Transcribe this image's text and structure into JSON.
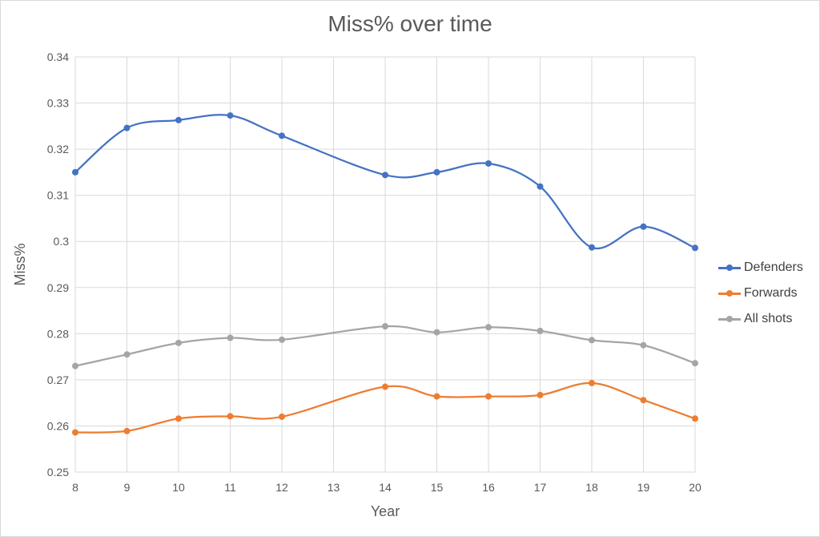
{
  "chart_data": {
    "type": "line",
    "title": "Miss% over time",
    "xlabel": "Year",
    "ylabel": "Miss%",
    "x": [
      8,
      9,
      10,
      11,
      12,
      13,
      14,
      15,
      16,
      17,
      18,
      19,
      20
    ],
    "xticks": [
      "8",
      "9",
      "10",
      "11",
      "12",
      "13",
      "14",
      "15",
      "16",
      "17",
      "18",
      "19",
      "20"
    ],
    "ylim": [
      0.25,
      0.34
    ],
    "yticks": [
      "0.25",
      "0.26",
      "0.27",
      "0.28",
      "0.29",
      "0.3",
      "0.31",
      "0.32",
      "0.33",
      "0.34"
    ],
    "grid": true,
    "legend_position": "right",
    "series": [
      {
        "name": "Defenders",
        "color": "#4472c4",
        "x": [
          8,
          9,
          10,
          11,
          12,
          14,
          15,
          16,
          17,
          18,
          19,
          20
        ],
        "values": [
          0.315,
          0.3246,
          0.3263,
          0.3273,
          0.3229,
          0.3144,
          0.315,
          0.3169,
          0.3119,
          0.2987,
          0.3032,
          0.2986
        ]
      },
      {
        "name": "Forwards",
        "color": "#ed7d31",
        "x": [
          8,
          9,
          10,
          11,
          12,
          14,
          15,
          16,
          17,
          18,
          19,
          20
        ],
        "values": [
          0.2586,
          0.2589,
          0.2616,
          0.2621,
          0.262,
          0.2685,
          0.2664,
          0.2664,
          0.2667,
          0.2693,
          0.2656,
          0.2616
        ]
      },
      {
        "name": "All shots",
        "color": "#a5a5a5",
        "x": [
          8,
          9,
          10,
          11,
          12,
          14,
          15,
          16,
          17,
          18,
          19,
          20
        ],
        "values": [
          0.273,
          0.2755,
          0.278,
          0.2791,
          0.2787,
          0.2816,
          0.2803,
          0.2814,
          0.2806,
          0.2786,
          0.2775,
          0.2736
        ]
      }
    ]
  }
}
